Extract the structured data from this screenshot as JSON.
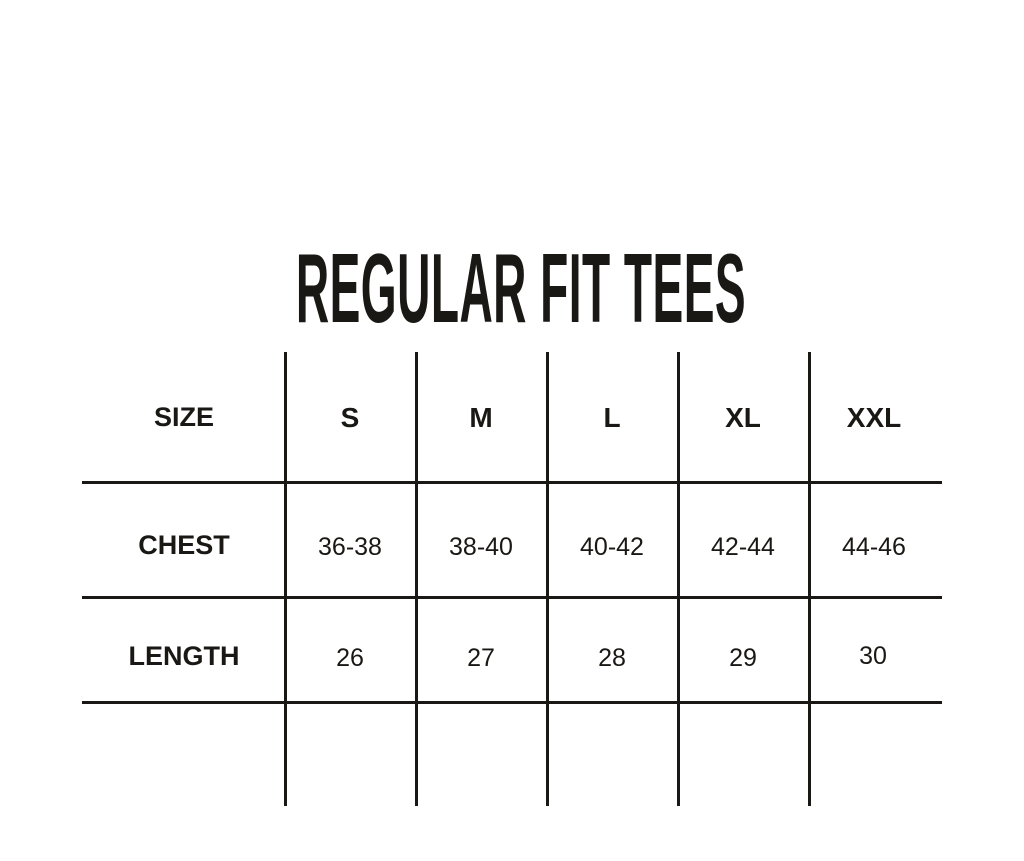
{
  "title": "REGULAR FIT TEES",
  "table": {
    "header": [
      "SIZE",
      "S",
      "M",
      "L",
      "XL",
      "XXL"
    ],
    "rows": [
      {
        "label": "CHEST",
        "values": [
          "36-38",
          "38-40",
          "40-42",
          "42-44",
          "44-46"
        ]
      },
      {
        "label": "LENGTH",
        "values": [
          "26",
          "27",
          "28",
          "29",
          "30"
        ]
      }
    ]
  },
  "colors": {
    "ink": "#1a1814",
    "background": "#ffffff"
  }
}
